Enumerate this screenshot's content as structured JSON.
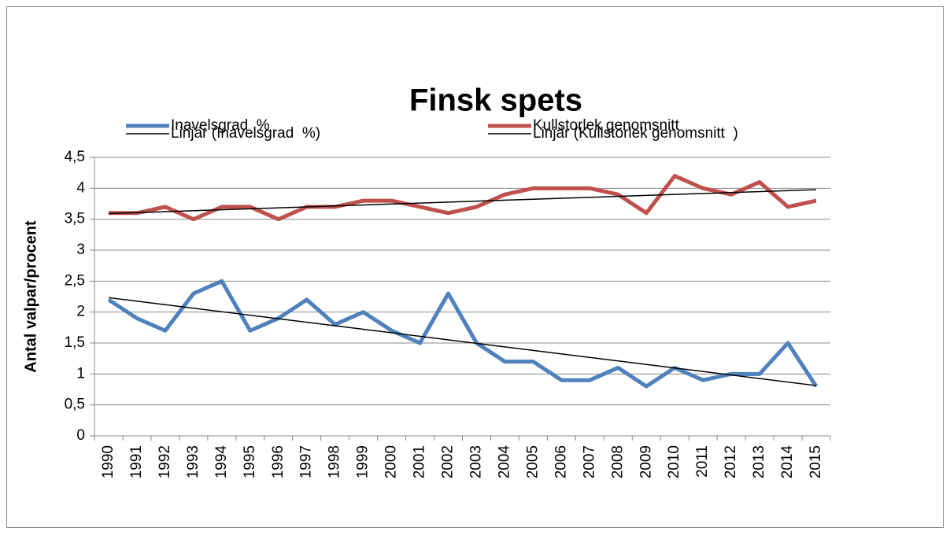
{
  "chart_data": {
    "type": "line",
    "title": "Finsk spets",
    "y_label": "Antal valpar/procent",
    "categories": [
      "1990",
      "1991",
      "1992",
      "1993",
      "1994",
      "1995",
      "1996",
      "1997",
      "1998",
      "1999",
      "2000",
      "2001",
      "2002",
      "2003",
      "2004",
      "2005",
      "2006",
      "2007",
      "2008",
      "2009",
      "2010",
      "2011",
      "2012",
      "2013",
      "2014",
      "2015"
    ],
    "series": [
      {
        "name": "Inavelsgrad  %",
        "color": "#4f81bd",
        "values": [
          2.2,
          1.9,
          1.7,
          2.3,
          2.5,
          1.7,
          1.9,
          2.2,
          1.8,
          2.0,
          1.7,
          1.5,
          2.3,
          1.5,
          1.2,
          1.2,
          0.9,
          0.9,
          1.1,
          0.8,
          1.1,
          0.9,
          1.0,
          1.0,
          1.5,
          0.8
        ],
        "trendline": {
          "name": "Linjär (Inavelsgrad  %)",
          "color": "#000000"
        }
      },
      {
        "name": "Kullstorlek genomsnitt",
        "color": "#c0504d",
        "values": [
          3.6,
          3.6,
          3.7,
          3.5,
          3.7,
          3.7,
          3.5,
          3.7,
          3.7,
          3.8,
          3.8,
          3.7,
          3.6,
          3.7,
          3.9,
          4.0,
          4.0,
          4.0,
          3.9,
          3.6,
          4.2,
          4.0,
          3.9,
          4.1,
          3.7,
          3.8
        ],
        "trendline": {
          "name": "Linjär (Kullstorlek genomsnitt  )",
          "color": "#000000"
        }
      }
    ],
    "ylim": [
      0,
      4.5
    ],
    "yticks": [
      0,
      {
        "value": 0.5,
        "label": "0,5"
      },
      1,
      {
        "value": 1.5,
        "label": "1,5"
      },
      2,
      {
        "value": 2.5,
        "label": "2,5"
      },
      3,
      {
        "value": 3.5,
        "label": "3,5"
      },
      4,
      {
        "value": 4.5,
        "label": "4,5"
      }
    ],
    "grid": true
  }
}
